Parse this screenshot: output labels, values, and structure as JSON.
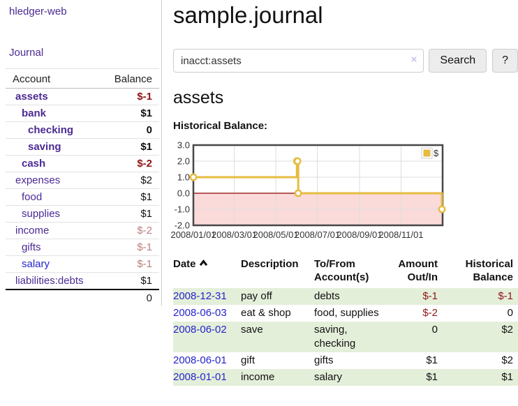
{
  "sidebar": {
    "app_title": "hledger-web",
    "journal_link": "Journal",
    "accounts_table": {
      "headers": {
        "account": "Account",
        "balance": "Balance"
      },
      "rows": [
        {
          "label": "assets",
          "depth": 1,
          "bold": true,
          "balance": "$-1",
          "balance_class": "amt-neg-strong",
          "label_class": "lnk-purple"
        },
        {
          "label": "bank",
          "depth": 2,
          "bold": true,
          "balance": "$1",
          "balance_class": "amt-pos",
          "label_class": "lnk-purple"
        },
        {
          "label": "checking",
          "depth": 3,
          "bold": true,
          "balance": "0",
          "balance_class": "amt-pos",
          "label_class": "lnk-purple"
        },
        {
          "label": "saving",
          "depth": 3,
          "bold": true,
          "balance": "$1",
          "balance_class": "amt-pos",
          "label_class": "lnk-purple"
        },
        {
          "label": "cash",
          "depth": 2,
          "bold": true,
          "balance": "$-2",
          "balance_class": "amt-neg-strong",
          "label_class": "lnk-purple"
        },
        {
          "label": "expenses",
          "depth": 1,
          "bold": false,
          "balance": "$2",
          "balance_class": "amt-pos",
          "label_class": "lnk-purple"
        },
        {
          "label": "food",
          "depth": 2,
          "bold": false,
          "balance": "$1",
          "balance_class": "amt-pos",
          "label_class": "lnk-purple"
        },
        {
          "label": "supplies",
          "depth": 2,
          "bold": false,
          "balance": "$1",
          "balance_class": "amt-pos",
          "label_class": "lnk-purple"
        },
        {
          "label": "income",
          "depth": 1,
          "bold": false,
          "balance": "$-2",
          "balance_class": "amt-neg-soft",
          "label_class": "lnk-purple"
        },
        {
          "label": "gifts",
          "depth": 2,
          "bold": false,
          "balance": "$-1",
          "balance_class": "amt-neg-soft",
          "label_class": "lnk-purple"
        },
        {
          "label": "salary",
          "depth": 2,
          "bold": false,
          "balance": "$-1",
          "balance_class": "amt-neg-soft",
          "label_class": "lnk-blue"
        },
        {
          "label": "liabilities:debts",
          "depth": 1,
          "bold": false,
          "balance": "$1",
          "balance_class": "amt-pos",
          "label_class": "lnk-purple"
        }
      ],
      "total": "0"
    }
  },
  "header": {
    "title": "sample.journal"
  },
  "search": {
    "value": "inacct:assets",
    "clear_icon": "×",
    "search_label": "Search",
    "help_label": "?"
  },
  "account_page": {
    "heading": "assets",
    "chart_label": "Historical Balance:"
  },
  "chart_data": {
    "type": "line",
    "title": "Historical Balance",
    "style": "step",
    "x_range_days": [
      0,
      366
    ],
    "ylim": [
      -2,
      3
    ],
    "y_ticks": [
      3.0,
      2.0,
      1.0,
      0.0,
      -1.0,
      -2.0
    ],
    "x_ticks": [
      {
        "day": 0,
        "label": "2008/01/01"
      },
      {
        "day": 60,
        "label": "2008/03/01"
      },
      {
        "day": 121,
        "label": "2008/05/01"
      },
      {
        "day": 182,
        "label": "2008/07/01"
      },
      {
        "day": 244,
        "label": "2008/09/01"
      },
      {
        "day": 305,
        "label": "2008/11/01"
      }
    ],
    "series": [
      {
        "name": "$",
        "color": "#e6bc40",
        "points": [
          {
            "date": "2008-01-01",
            "day": 0,
            "value": 1
          },
          {
            "date": "2008-06-01",
            "day": 152,
            "value": 2
          },
          {
            "date": "2008-06-02",
            "day": 153,
            "value": 2
          },
          {
            "date": "2008-06-03",
            "day": 154,
            "value": 0
          },
          {
            "date": "2008-12-31",
            "day": 365,
            "value": -1
          }
        ]
      }
    ],
    "legend": {
      "position": "top-right",
      "label": "$"
    },
    "grid": true,
    "grid_color": "#dedede",
    "border_color": "#474747",
    "zero_line_color": "#8b0000",
    "negative_region_fill": "#fbdada"
  },
  "register_table": {
    "sort_icon": "chevron-up-icon",
    "headers": {
      "date": "Date",
      "description": "Description",
      "accounts": "To/From Account(s)",
      "amount": "Amount Out/In",
      "balance": "Historical Balance"
    },
    "rows": [
      {
        "date": "2008-12-31",
        "description": "pay off",
        "accounts": "debts",
        "amount": "$-1",
        "amount_class": "amt-neg-strong",
        "balance": "$-1",
        "balance_class": "amt-neg-strong",
        "alt": true
      },
      {
        "date": "2008-06-03",
        "description": "eat & shop",
        "accounts": "food, supplies",
        "amount": "$-2",
        "amount_class": "amt-neg-strong",
        "balance": "0",
        "balance_class": "amt-pos",
        "alt": false
      },
      {
        "date": "2008-06-02",
        "description": "save",
        "accounts": "saving, checking",
        "amount": "0",
        "amount_class": "amt-pos",
        "balance": "$2",
        "balance_class": "amt-pos",
        "alt": true
      },
      {
        "date": "2008-06-01",
        "description": "gift",
        "accounts": "gifts",
        "amount": "$1",
        "amount_class": "amt-pos",
        "balance": "$2",
        "balance_class": "amt-pos",
        "alt": false
      },
      {
        "date": "2008-01-01",
        "description": "income",
        "accounts": "salary",
        "amount": "$1",
        "amount_class": "amt-pos",
        "balance": "$1",
        "balance_class": "amt-pos",
        "alt": true
      }
    ]
  }
}
